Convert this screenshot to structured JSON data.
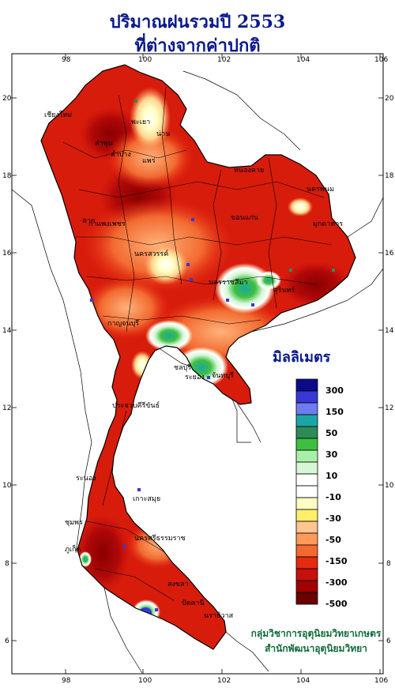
{
  "title": {
    "line1": "ปริมาณฝนรวมปี  2553",
    "line2": "ที่ต่างจากค่าปกติ"
  },
  "axes": {
    "lon_ticks": [
      "98",
      "100",
      "102",
      "104",
      "106"
    ],
    "lat_ticks": [
      "20",
      "18",
      "16",
      "14",
      "12",
      "10",
      "8",
      "6"
    ]
  },
  "legend": {
    "title": "มิลลิเมตร",
    "labels": [
      "300",
      "150",
      "50",
      "30",
      "10",
      "-10",
      "-30",
      "-50",
      "-150",
      "-300",
      "-500"
    ],
    "colors": [
      "#0b0b8a",
      "#3838d6",
      "#6f7cf0",
      "#1aa6a6",
      "#2e8b57",
      "#3fbf3f",
      "#a8f0a8",
      "#d6f6d6",
      "#ffffff",
      "#ffffff",
      "#ffffc4",
      "#ffef6a",
      "#ffc690",
      "#ff9a5a",
      "#f26a30",
      "#e52a10",
      "#c8100a",
      "#a00000",
      "#6a0000"
    ]
  },
  "place_labels": [
    "เชียงใหม่",
    "พะเยา",
    "น่าน",
    "แพร่",
    "ลำพูน",
    "ลำปาง",
    "หนองคาย",
    "นครพนม",
    "มุกดาหาร",
    "ตาก",
    "กำแพงเพชร",
    "นครสวรรค์",
    "นครราชสีมา",
    "ขอนแก่น",
    "สุรินทร์",
    "ชลบุรี",
    "ระยอง",
    "จันทบุรี",
    "กาญจนบุรี",
    "ประจวบคีรีขันธ์",
    "ระนอง",
    "ชุมพร",
    "นครศรีธรรมราช",
    "สงขลา",
    "ปัตตานี",
    "นราธิวาส",
    "เกาะสมุย",
    "ภูเก็ต"
  ],
  "credits": {
    "line1": "กลุ่มวิชาการอุตุนิยมวิทยาเกษตร",
    "line2": "สำนักพัฒนาอุตุนิยมวิทยา"
  }
}
